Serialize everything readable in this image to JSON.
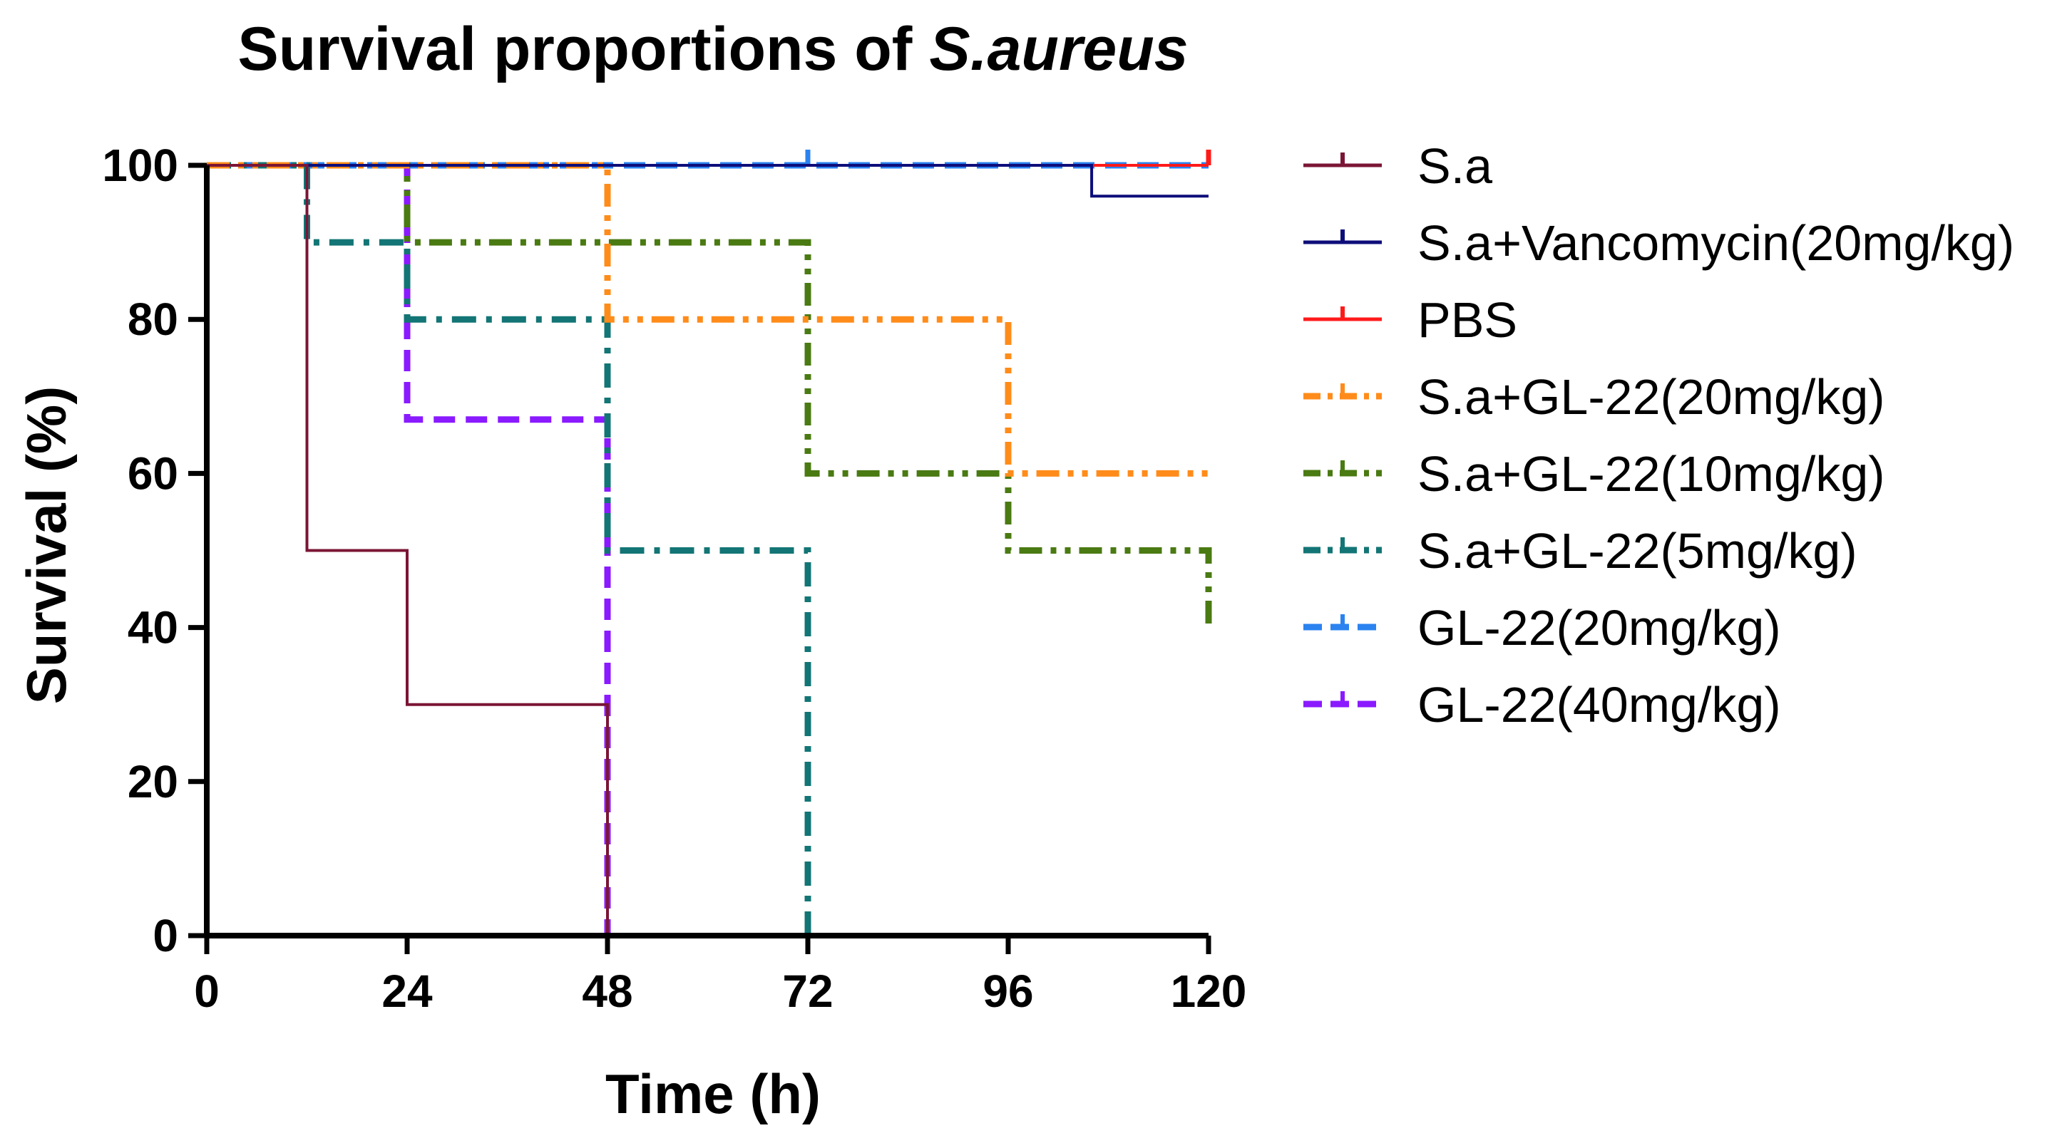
{
  "chart_data": {
    "type": "line",
    "subtype": "kaplan-meier-step",
    "title": "Survival proportions of S.aureus",
    "title_plain": "Survival proportions of ",
    "title_italic": "S.aureus",
    "xlabel": "Time (h)",
    "ylabel": "Survival (%)",
    "xlim": [
      0,
      120
    ],
    "ylim": [
      0,
      100
    ],
    "x_ticks": [
      0,
      24,
      48,
      72,
      96,
      120
    ],
    "y_ticks": [
      0,
      20,
      40,
      60,
      80,
      100
    ],
    "grid": false,
    "legend_position": "right",
    "series": [
      {
        "name": "S.a",
        "color": "#7b1535",
        "dash": "solid",
        "width": "thin",
        "steps": [
          [
            0,
            100
          ],
          [
            12,
            50
          ],
          [
            24,
            30
          ],
          [
            48,
            0
          ]
        ]
      },
      {
        "name": "S.a+Vancomycin(20mg/kg)",
        "color": "#0d0d7a",
        "dash": "solid",
        "width": "thin",
        "steps": [
          [
            0,
            100
          ],
          [
            106,
            96
          ],
          [
            120,
            96
          ]
        ]
      },
      {
        "name": "PBS",
        "color": "#ff1a1a",
        "dash": "solid",
        "width": "thin",
        "steps": [
          [
            0,
            100
          ],
          [
            120,
            100
          ]
        ],
        "end_tick": true
      },
      {
        "name": "S.a+GL-22(20mg/kg)",
        "color": "#ff8c1a",
        "dash": "dash-dot-dot",
        "width": "thick",
        "steps": [
          [
            0,
            100
          ],
          [
            48,
            80
          ],
          [
            96,
            60
          ],
          [
            120,
            60
          ]
        ]
      },
      {
        "name": "S.a+GL-22(10mg/kg)",
        "color": "#4a7a12",
        "dash": "dash-dot-dot",
        "width": "thick",
        "steps": [
          [
            0,
            100
          ],
          [
            24,
            90
          ],
          [
            48,
            90
          ],
          [
            72,
            60
          ],
          [
            96,
            50
          ],
          [
            120,
            40
          ]
        ]
      },
      {
        "name": "S.a+GL-22(5mg/kg)",
        "color": "#137575",
        "dash": "dash-dot",
        "width": "thick",
        "steps": [
          [
            0,
            100
          ],
          [
            12,
            90
          ],
          [
            24,
            80
          ],
          [
            48,
            50
          ],
          [
            72,
            0
          ]
        ]
      },
      {
        "name": "GL-22(20mg/kg)",
        "color": "#2b83f0",
        "dash": "dashed",
        "width": "thick",
        "steps": [
          [
            0,
            100
          ],
          [
            120,
            100
          ]
        ],
        "censor_marks": [
          72
        ]
      },
      {
        "name": "GL-22(40mg/kg)",
        "color": "#8a1aff",
        "dash": "dashed",
        "width": "thick",
        "steps": [
          [
            0,
            100
          ],
          [
            24,
            67
          ],
          [
            48,
            0
          ]
        ]
      }
    ]
  }
}
